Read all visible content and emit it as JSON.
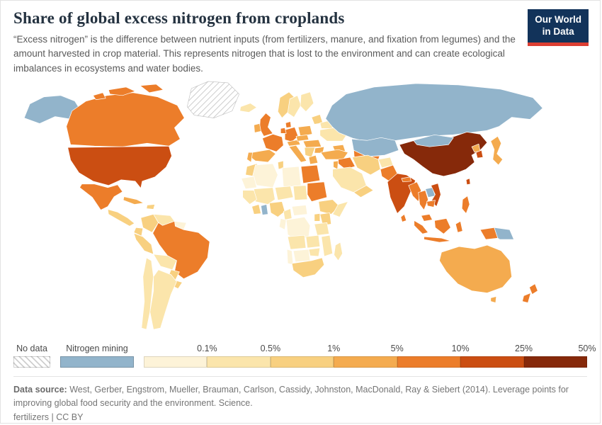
{
  "header": {
    "title": "Share of global excess nitrogen from croplands",
    "subtitle": "“Excess nitrogen” is the difference between nutrient inputs (from fertilizers, manure, and fixation from legumes) and the amount harvested in crop material. This represents nitrogen that is lost to the environment and can create ecological imbalances in ecosystems and water bodies."
  },
  "logo": {
    "line1": "Our World",
    "line2": "in Data",
    "bg_color": "#12335a",
    "accent_color": "#dc3e32"
  },
  "legend": {
    "no_data_label": "No data",
    "mining_label": "Nitrogen mining",
    "scale_labels": [
      "0.1%",
      "0.5%",
      "1%",
      "5%",
      "10%",
      "25%",
      "50%"
    ],
    "colors": {
      "mining": "#92b4cb",
      "bins": [
        "#fdf3d8",
        "#fbe5ab",
        "#f8d080",
        "#f4ab4f",
        "#ec7d2a",
        "#cb4e12",
        "#86290a"
      ]
    }
  },
  "chart_data": {
    "type": "heatmap",
    "subtype": "choropleth-world-map",
    "title": "Share of global excess nitrogen from croplands",
    "unit": "% of global excess nitrogen",
    "legend_position": "bottom",
    "bin_ranges": {
      "no_data": "No data",
      "mining": "Nitrogen mining",
      "bin1": "<0.1%",
      "bin2": "0.1–0.5%",
      "bin3": "0.5–1%",
      "bin4": "1–5%",
      "bin5": "5–10%",
      "bin6": "10–25%",
      "bin7": "25–50%"
    },
    "regions": {
      "alaska": "mining",
      "canada": "bin5",
      "canada-arctic-1": "bin5",
      "canada-arctic-2": "bin5",
      "canada-arctic-3": "bin5",
      "greenland": "no_data",
      "usa": "bin6",
      "mexico": "bin5",
      "central-america": "bin3",
      "cuba": "bin4",
      "hispaniola": "bin3",
      "colombia": "bin3",
      "venezuela": "bin2",
      "guyanas": "bin1",
      "ecuador": "bin3",
      "peru": "bin3",
      "brazil": "bin5",
      "bolivia": "bin2",
      "paraguay": "bin3",
      "uruguay": "bin3",
      "argentina": "bin2",
      "chile": "bin2",
      "iceland": "bin2",
      "uk": "bin5",
      "ireland": "bin4",
      "norway": "bin3",
      "sweden": "bin2",
      "finland": "bin2",
      "denmark": "bin5",
      "germany": "bin5",
      "benelux": "bin5",
      "france": "bin5",
      "spain": "bin4",
      "portugal": "bin4",
      "italy": "bin4",
      "switzerland-austria": "bin4",
      "poland": "bin4",
      "czech-slovakia": "bin4",
      "hungary-romania": "bin4",
      "balkans": "bin3",
      "greece": "bin4",
      "bulgaria": "bin4",
      "baltics": "bin3",
      "belarus": "bin2",
      "ukraine": "bin2",
      "russia": "mining",
      "kazakhstan": "mining",
      "central-asia": "bin5",
      "caucasus": "bin4",
      "turkey": "bin4",
      "syria-iraq": "bin5",
      "israel-jordan": "bin4",
      "saudi-arabia": "bin2",
      "yemen-oman": "bin3",
      "iran": "bin3",
      "afghanistan": "bin2",
      "pakistan": "bin5",
      "india": "bin6",
      "nepal": "bin5",
      "bangladesh": "bin5",
      "sri-lanka": "bin5",
      "china": "bin7",
      "mongolia": "mining",
      "taiwan": "bin6",
      "north-korea": "bin4",
      "south-korea": "bin6",
      "japan": "bin4",
      "myanmar": "bin5",
      "thailand": "bin5",
      "laos": "mining",
      "vietnam": "bin6",
      "cambodia": "bin5",
      "malaysia": "bin5",
      "sumatra": "bin5",
      "java": "bin5",
      "borneo": "bin5",
      "sulawesi": "bin5",
      "west-papua": "bin5",
      "papua-new-guinea": "mining",
      "philippines": "bin5",
      "australia": "bin4",
      "tasmania": "bin4",
      "new-zealand-north": "bin5",
      "new-zealand-south": "bin5",
      "morocco": "bin3",
      "algeria": "bin1",
      "tunisia": "bin3",
      "libya": "bin1",
      "egypt": "bin5",
      "mauritania": "bin1",
      "mali": "bin2",
      "niger": "bin2",
      "chad": "bin2",
      "sudan": "bin5",
      "senegal-guinea": "bin2",
      "ivory-coast": "bin3",
      "ghana": "mining",
      "nigeria": "bin3",
      "cameroon": "bin2",
      "central-african-republic": "bin1",
      "ethiopia": "bin3",
      "somalia": "bin2",
      "kenya": "bin3",
      "uganda": "bin3",
      "drc": "bin1",
      "congo-gabon": "bin1",
      "tanzania": "bin2",
      "angola": "bin2",
      "zambia": "bin2",
      "mozambique": "bin2",
      "zimbabwe": "bin2",
      "namibia": "bin1",
      "botswana": "bin1",
      "south-africa": "bin3",
      "madagascar": "bin2"
    }
  },
  "footer": {
    "source_label": "Data source:",
    "source_text": "West, Gerber, Engstrom, Mueller, Brauman, Carlson, Cassidy, Johnston, MacDonald, Ray & Siebert (2014). Leverage points for improving global food security and the environment. Science.",
    "link_label": "fertilizers",
    "separator": "|",
    "license_label": "CC BY"
  }
}
